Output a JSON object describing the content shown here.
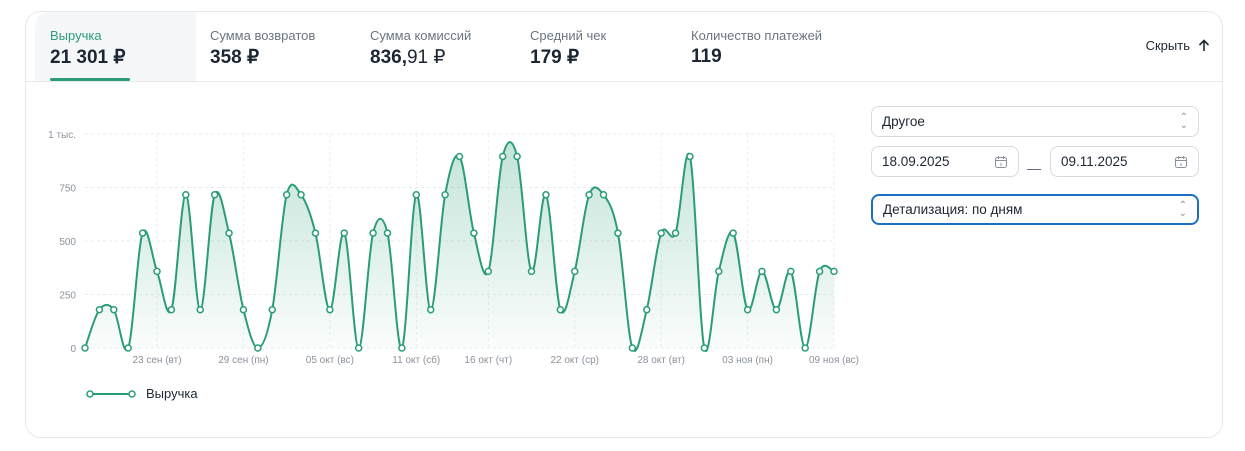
{
  "metrics": [
    {
      "label": "Выручка",
      "value": "21 301 ₽"
    },
    {
      "label": "Сумма возвратов",
      "value": "358 ₽"
    },
    {
      "label": "Сумма комиссий",
      "value_int": "836,",
      "value_frac": "91 ₽"
    },
    {
      "label": "Средний чек",
      "value": "179 ₽"
    },
    {
      "label": "Количество платежей",
      "value": "119"
    }
  ],
  "hide_label": "Скрыть",
  "controls": {
    "period": "Другое",
    "date_from": "18.09.2025",
    "date_to": "09.11.2025",
    "separator": "—",
    "detail": "Детализация: по дням"
  },
  "colors": {
    "accent": "#2a9d78",
    "focus": "#1c6fc4"
  },
  "chart_data": {
    "type": "area",
    "series": [
      {
        "name": "Выручка",
        "start_date": "18.09.2025",
        "values": [
          0,
          179,
          179,
          0,
          537,
          358,
          179,
          716,
          179,
          716,
          537,
          179,
          0,
          179,
          716,
          716,
          537,
          179,
          537,
          0,
          537,
          537,
          0,
          716,
          179,
          716,
          895,
          537,
          358,
          895,
          895,
          358,
          716,
          179,
          358,
          716,
          716,
          537,
          0,
          179,
          537,
          537,
          895,
          0,
          358,
          537,
          179,
          358,
          179,
          358,
          0,
          358,
          358
        ]
      }
    ],
    "x_ticks": [
      {
        "index": 5,
        "label": "23 сен (вт)"
      },
      {
        "index": 11,
        "label": "29 сен (пн)"
      },
      {
        "index": 17,
        "label": "05 окт (вс)"
      },
      {
        "index": 23,
        "label": "11 окт (сб)"
      },
      {
        "index": 28,
        "label": "16 окт (чт)"
      },
      {
        "index": 34,
        "label": "22 окт (ср)"
      },
      {
        "index": 40,
        "label": "28 окт (вт)"
      },
      {
        "index": 46,
        "label": "03 ноя (пн)"
      },
      {
        "index": 52,
        "label": "09 ноя (вс)"
      }
    ],
    "y_ticks": [
      {
        "value": 0,
        "label": "0"
      },
      {
        "value": 250,
        "label": "250"
      },
      {
        "value": 500,
        "label": "500"
      },
      {
        "value": 750,
        "label": "750"
      },
      {
        "value": 1000,
        "label": "1 тыс."
      }
    ],
    "ylim": [
      0,
      1000
    ],
    "grid": true,
    "legend": "bottom-left"
  }
}
